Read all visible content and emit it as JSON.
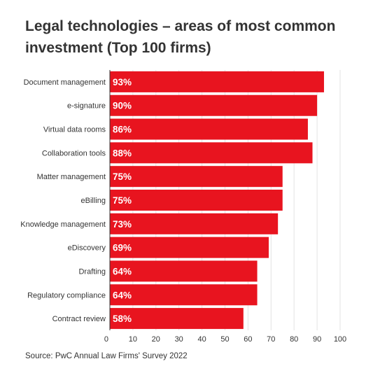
{
  "chart_data": {
    "type": "bar",
    "orientation": "horizontal",
    "title": "Legal technologies – areas of most common investment (Top 100 firms)",
    "categories": [
      "Document management",
      "e-signature",
      "Virtual data rooms",
      "Collaboration tools",
      "Matter management",
      "eBilling",
      "Knowledge management",
      "eDiscovery",
      "Drafting",
      "Regulatory compliance",
      "Contract review"
    ],
    "values": [
      93,
      90,
      86,
      88,
      75,
      75,
      73,
      69,
      64,
      64,
      58
    ],
    "value_suffix": "%",
    "xlim": [
      0,
      100
    ],
    "xticks": [
      0,
      10,
      20,
      30,
      40,
      50,
      60,
      70,
      80,
      90,
      100
    ],
    "grid": true,
    "bar_color": "#e8141f",
    "source": "Source: PwC Annual Law Firms' Survey 2022"
  }
}
